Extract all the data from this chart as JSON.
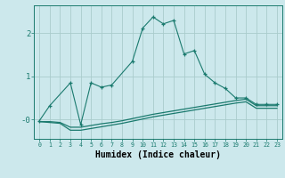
{
  "xlabel": "Humidex (Indice chaleur)",
  "xlim": [
    -0.5,
    23.5
  ],
  "ylim": [
    -0.45,
    2.65
  ],
  "background_color": "#cce8ec",
  "grid_color": "#aacccc",
  "line_color": "#1a7a6e",
  "series1_x": [
    0,
    1,
    3,
    4,
    5,
    6,
    7,
    9,
    10,
    11,
    12,
    13,
    14,
    15,
    16,
    17,
    18,
    19,
    20,
    21,
    22,
    23
  ],
  "series1_y": [
    -0.03,
    0.32,
    0.85,
    -0.12,
    0.85,
    0.75,
    0.8,
    1.35,
    2.12,
    2.38,
    2.22,
    2.3,
    1.52,
    1.6,
    1.05,
    0.85,
    0.72,
    0.5,
    0.5,
    0.35,
    0.35,
    0.35
  ],
  "series2_x": [
    0,
    1,
    2,
    3,
    4,
    5,
    6,
    7,
    8,
    9,
    10,
    11,
    12,
    13,
    14,
    15,
    16,
    17,
    18,
    19,
    20,
    21,
    22,
    23
  ],
  "series2_y": [
    -0.05,
    -0.05,
    -0.07,
    -0.18,
    -0.18,
    -0.14,
    -0.1,
    -0.07,
    -0.03,
    0.02,
    0.07,
    0.12,
    0.16,
    0.2,
    0.24,
    0.28,
    0.32,
    0.36,
    0.4,
    0.44,
    0.47,
    0.32,
    0.32,
    0.32
  ],
  "series3_x": [
    0,
    1,
    2,
    3,
    4,
    5,
    6,
    7,
    8,
    9,
    10,
    11,
    12,
    13,
    14,
    15,
    16,
    17,
    18,
    19,
    20,
    21,
    22,
    23
  ],
  "series3_y": [
    -0.05,
    -0.07,
    -0.09,
    -0.25,
    -0.25,
    -0.21,
    -0.17,
    -0.13,
    -0.09,
    -0.04,
    0.01,
    0.06,
    0.1,
    0.14,
    0.18,
    0.22,
    0.26,
    0.3,
    0.34,
    0.38,
    0.41,
    0.26,
    0.26,
    0.26
  ]
}
